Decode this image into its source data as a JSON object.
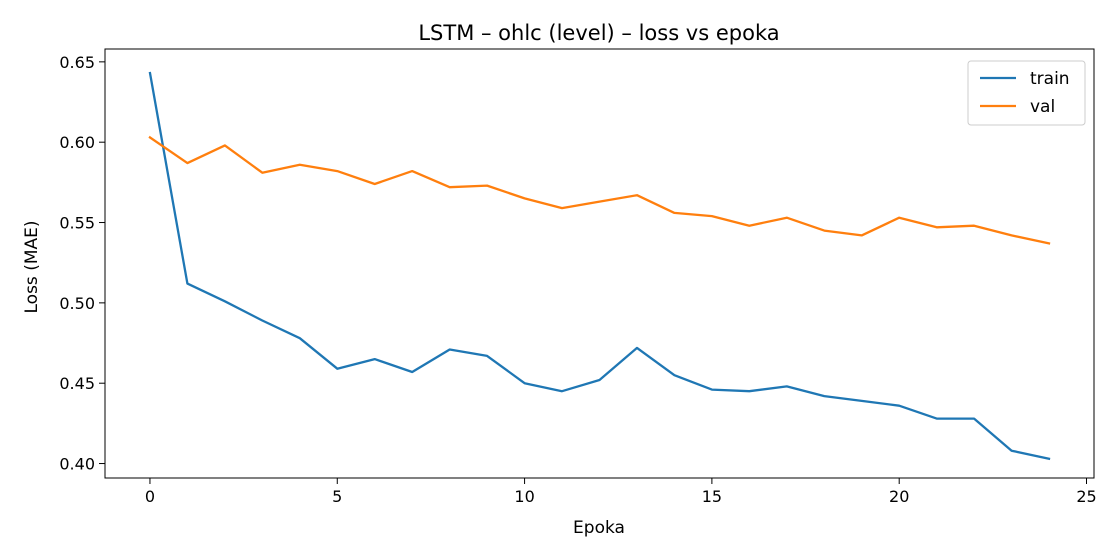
{
  "chart_data": {
    "type": "line",
    "title": "LSTM – ohlc (level) – loss vs epoka",
    "xlabel": "Epoka",
    "ylabel": "Loss (MAE)",
    "xlim": [
      -1.2,
      25.2
    ],
    "ylim": [
      0.391,
      0.658
    ],
    "xticks": [
      0,
      5,
      10,
      15,
      20,
      25
    ],
    "yticks": [
      0.4,
      0.45,
      0.5,
      0.55,
      0.6,
      0.65
    ],
    "grid": false,
    "legend_position": "top-right",
    "x": [
      0,
      1,
      2,
      3,
      4,
      5,
      6,
      7,
      8,
      9,
      10,
      11,
      12,
      13,
      14,
      15,
      16,
      17,
      18,
      19,
      20,
      21,
      22,
      23,
      24
    ],
    "series": [
      {
        "name": "train",
        "color": "#1f77b4",
        "values": [
          0.643,
          0.512,
          0.501,
          0.489,
          0.478,
          0.459,
          0.465,
          0.457,
          0.471,
          0.467,
          0.45,
          0.445,
          0.452,
          0.472,
          0.455,
          0.446,
          0.445,
          0.448,
          0.442,
          0.439,
          0.436,
          0.428,
          0.428,
          0.408,
          0.403
        ]
      },
      {
        "name": "val",
        "color": "#ff7f0e",
        "values": [
          0.603,
          0.587,
          0.598,
          0.581,
          0.586,
          0.582,
          0.574,
          0.582,
          0.572,
          0.573,
          0.565,
          0.559,
          0.563,
          0.567,
          0.556,
          0.554,
          0.548,
          0.553,
          0.545,
          0.542,
          0.553,
          0.547,
          0.548,
          0.542,
          0.537
        ]
      }
    ]
  }
}
